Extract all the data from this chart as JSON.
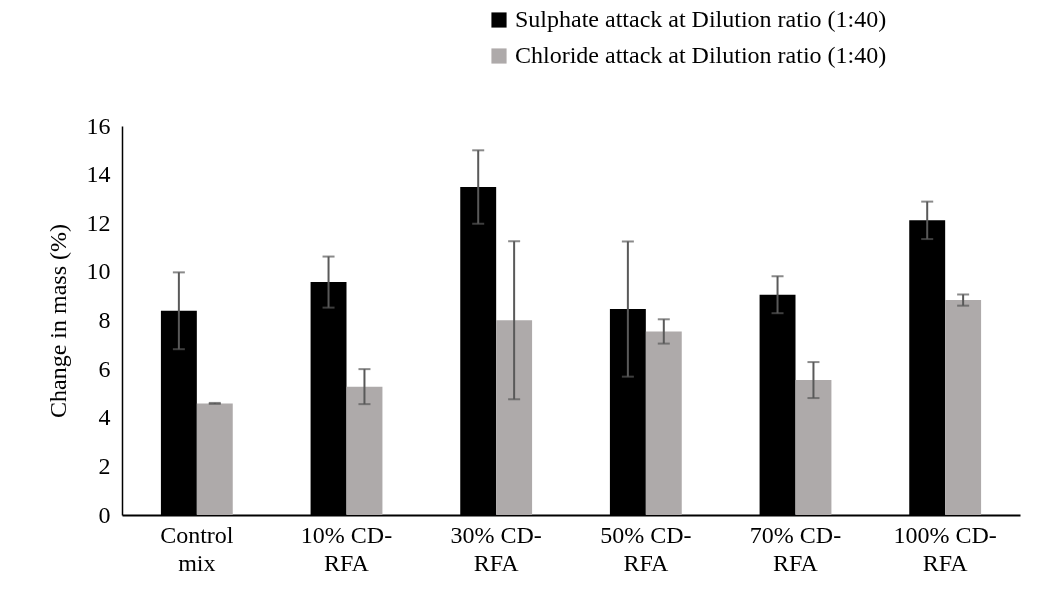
{
  "chart_data": {
    "type": "bar",
    "ylabel": "Change in mass (%)",
    "categories": [
      "Control mix",
      "10% CD-RFA",
      "30% CD-RFA",
      "50% CD-RFA",
      "70% CD-RFA",
      "100% CD-RFA"
    ],
    "series": [
      {
        "name": "Sulphate attack at Dilution ratio (1:40)",
        "color": "#000000",
        "values": [
          8.4,
          9.58,
          13.49,
          8.47,
          9.06,
          12.12
        ],
        "errors": [
          1.58,
          1.05,
          1.51,
          2.78,
          0.76,
          0.77
        ]
      },
      {
        "name": "Chloride attack at Dilution ratio (1:40)",
        "color": "#aeaaaa",
        "values": [
          4.59,
          5.28,
          8.01,
          7.55,
          5.55,
          8.84
        ],
        "errors": [
          0.02,
          0.72,
          3.25,
          0.5,
          0.74,
          0.23
        ]
      }
    ],
    "ylim": [
      0,
      16
    ],
    "yticks": [
      0,
      2,
      4,
      6,
      8,
      10,
      12,
      14,
      16
    ],
    "grid": false,
    "legend": "top"
  }
}
